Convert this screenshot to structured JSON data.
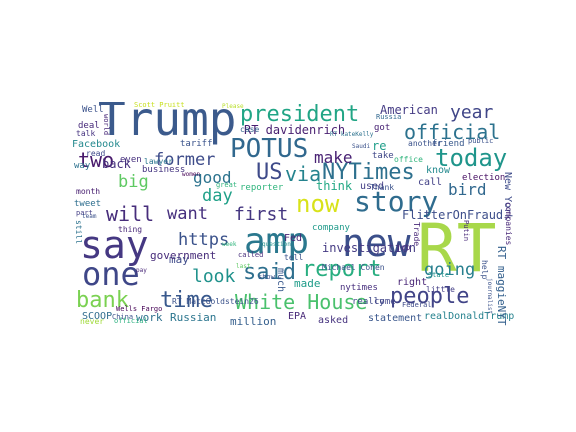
{
  "word_cloud": {
    "words": [
      {
        "text": "Trump",
        "color": "#3b5a8c"
      },
      {
        "text": "RT",
        "color": "#a8d84a"
      },
      {
        "text": "say",
        "color": "#453882"
      },
      {
        "text": "amp",
        "color": "#2a788e"
      },
      {
        "text": "new",
        "color": "#3b4f8a"
      },
      {
        "text": "one",
        "color": "#3f4788"
      },
      {
        "text": "story",
        "color": "#2f6c8e"
      },
      {
        "text": "POTUS",
        "color": "#31688e"
      },
      {
        "text": "president",
        "color": "#21a585"
      },
      {
        "text": "said",
        "color": "#2e6f8e"
      },
      {
        "text": "report",
        "color": "#28ae80"
      },
      {
        "text": "today",
        "color": "#1f958b"
      },
      {
        "text": "official",
        "color": "#2c728e"
      },
      {
        "text": "people",
        "color": "#414487"
      },
      {
        "text": "bank",
        "color": "#7ad151"
      },
      {
        "text": "White House",
        "color": "#4ac16d"
      },
      {
        "text": "time",
        "color": "#38588c"
      },
      {
        "text": "via",
        "color": "#25838e"
      },
      {
        "text": "US",
        "color": "#3e4a89"
      },
      {
        "text": "NYTimes",
        "color": "#2d708e"
      },
      {
        "text": "now",
        "color": "#d8e219"
      },
      {
        "text": "will",
        "color": "#472d7b"
      },
      {
        "text": "https",
        "color": "#3b528b"
      },
      {
        "text": "two",
        "color": "#48196b"
      },
      {
        "text": "year",
        "color": "#404688"
      },
      {
        "text": "former",
        "color": "#3e4c8a"
      },
      {
        "text": "make",
        "color": "#482173"
      },
      {
        "text": "good",
        "color": "#2c738e"
      },
      {
        "text": "day",
        "color": "#1fa088"
      },
      {
        "text": "first",
        "color": "#453781"
      },
      {
        "text": "want",
        "color": "#46307e"
      },
      {
        "text": "look",
        "color": "#20928c"
      },
      {
        "text": "going",
        "color": "#277f8e"
      },
      {
        "text": "big",
        "color": "#5ec962"
      },
      {
        "text": "bird",
        "color": "#31688e"
      },
      {
        "text": "American",
        "color": "#443b84"
      },
      {
        "text": "RT davidenrich",
        "color": "#481f70"
      },
      {
        "text": "back",
        "color": "#46327e"
      },
      {
        "text": "investigation",
        "color": "#443a83"
      },
      {
        "text": "think",
        "color": "#22a884"
      },
      {
        "text": "made",
        "color": "#1e9c89"
      },
      {
        "text": "may",
        "color": "#3e4a89"
      },
      {
        "text": "FlitterOnFraud",
        "color": "#3d4e8a"
      },
      {
        "text": "realDonaldTrump",
        "color": "#26828e"
      },
      {
        "text": "Russian",
        "color": "#2b758e"
      },
      {
        "text": "work",
        "color": "#2d708e"
      },
      {
        "text": "million",
        "color": "#355f8d"
      },
      {
        "text": "government",
        "color": "#472c7a"
      },
      {
        "text": "RT maggieNYT",
        "color": "#34608d"
      },
      {
        "text": "New York",
        "color": "#3e4c8a"
      },
      {
        "text": "Facebook",
        "color": "#23898e"
      },
      {
        "text": "SCOOP",
        "color": "#2f6c8e"
      },
      {
        "text": "EPA",
        "color": "#482878"
      },
      {
        "text": "asked",
        "color": "#46337f"
      },
      {
        "text": "statement",
        "color": "#39568c"
      },
      {
        "text": "RT MattGoldstein26",
        "color": "#3b528b"
      },
      {
        "text": "company",
        "color": "#1f9a8a"
      },
      {
        "text": "nytimes",
        "color": "#472f7d"
      },
      {
        "text": "really",
        "color": "#3f4889"
      },
      {
        "text": "much",
        "color": "#38588c"
      },
      {
        "text": "Fed",
        "color": "#482475"
      },
      {
        "text": "reporter",
        "color": "#2fb47c"
      },
      {
        "text": "used",
        "color": "#433e85"
      },
      {
        "text": "call",
        "color": "#424086"
      },
      {
        "text": "know",
        "color": "#23898e"
      },
      {
        "text": "right",
        "color": "#482576"
      },
      {
        "text": "come",
        "color": "#404588"
      },
      {
        "text": "election",
        "color": "#471063"
      },
      {
        "text": "Thank",
        "color": "#3b528b"
      },
      {
        "text": "take",
        "color": "#3f4788"
      },
      {
        "text": "even",
        "color": "#46307e"
      },
      {
        "text": "tweet",
        "color": "#2e6e8e"
      },
      {
        "text": "read",
        "color": "#3e4989"
      },
      {
        "text": "month",
        "color": "#482071"
      },
      {
        "text": "way",
        "color": "#2c718e"
      },
      {
        "text": "business",
        "color": "#453581"
      },
      {
        "text": "lawyer",
        "color": "#2a768e"
      },
      {
        "text": "tariff",
        "color": "#3a538b"
      },
      {
        "text": "deal",
        "color": "#472a7a"
      },
      {
        "text": "talk",
        "color": "#463480"
      },
      {
        "text": "friend",
        "color": "#38588c"
      },
      {
        "text": "office",
        "color": "#2fb47c"
      },
      {
        "text": "re",
        "color": "#1f9e89"
      },
      {
        "text": "got",
        "color": "#482374"
      },
      {
        "text": "case",
        "color": "#34618d"
      },
      {
        "text": "Russia",
        "color": "#31688e"
      },
      {
        "text": "Scott Pruitt",
        "color": "#c8e020"
      },
      {
        "text": "Michael Cohen",
        "color": "#3b528b"
      },
      {
        "text": "Trade",
        "color": "#482878"
      },
      {
        "text": "companies",
        "color": "#482878"
      },
      {
        "text": "help",
        "color": "#3b528b"
      },
      {
        "text": "little",
        "color": "#433e85"
      },
      {
        "text": "Federal",
        "color": "#3e4a89"
      },
      {
        "text": "State",
        "color": "#21918c"
      },
      {
        "text": "another",
        "color": "#3b528b"
      },
      {
        "text": "Wells Fargo",
        "color": "#440154"
      },
      {
        "text": "China",
        "color": "#3b528b"
      },
      {
        "text": "official",
        "color": "#2ab07f"
      },
      {
        "text": "never",
        "color": "#a0da39"
      },
      {
        "text": "part",
        "color": "#433e85"
      },
      {
        "text": "Well",
        "color": "#3b528b"
      },
      {
        "text": "world",
        "color": "#482878"
      },
      {
        "text": "thing",
        "color": "#482878"
      },
      {
        "text": "still",
        "color": "#2c728e"
      },
      {
        "text": "Putin",
        "color": "#482878"
      },
      {
        "text": "job",
        "color": "#472d7b"
      },
      {
        "text": "show",
        "color": "#3b528b"
      },
      {
        "text": "called",
        "color": "#472d7b"
      },
      {
        "text": "tell",
        "color": "#3b528b"
      },
      {
        "text": "great",
        "color": "#2fb47c"
      },
      {
        "text": "public",
        "color": "#3b528b"
      },
      {
        "text": "team",
        "color": "#3b528b"
      },
      {
        "text": "last",
        "color": "#5ec962"
      },
      {
        "text": "Please",
        "color": "#b8de29"
      },
      {
        "text": "RT kateKelly",
        "color": "#2c728e"
      },
      {
        "text": "question",
        "color": "#21918c"
      },
      {
        "text": "women",
        "color": "#440154"
      },
      {
        "text": "Saudi",
        "color": "#3b528b"
      },
      {
        "text": "journalist",
        "color": "#3b528b"
      },
      {
        "text": "pay",
        "color": "#482878"
      },
      {
        "text": "week",
        "color": "#2fb47c"
      }
    ]
  }
}
